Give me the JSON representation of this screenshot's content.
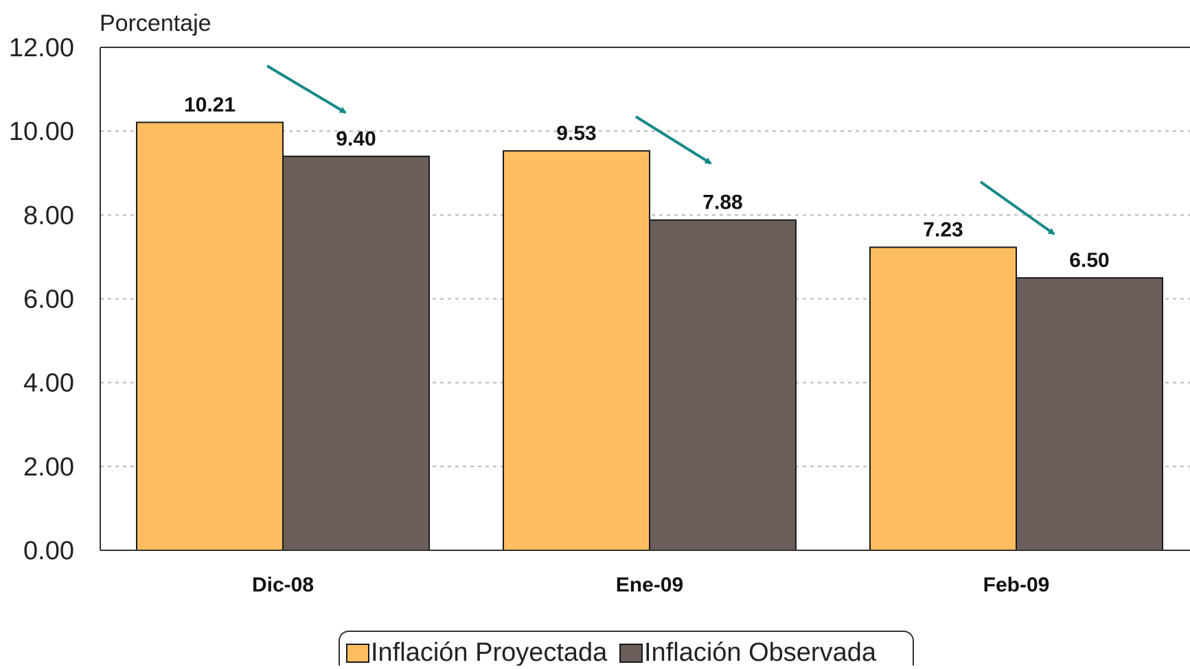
{
  "chart_data": {
    "type": "bar",
    "ylabel": "Porcentaje",
    "xlabel": "",
    "title": "",
    "ylim": [
      0,
      12
    ],
    "yticks": [
      "0.00",
      "2.00",
      "4.00",
      "6.00",
      "8.00",
      "10.00",
      "12.00"
    ],
    "categories": [
      "Dic-08",
      "Ene-09",
      "Feb-09"
    ],
    "series": [
      {
        "name": "Inflación Proyectada",
        "color": "#FDBD60",
        "values": [
          10.21,
          9.53,
          7.23
        ],
        "labels": [
          "10.21",
          "9.53",
          "7.23"
        ]
      },
      {
        "name": "Inflación Observada",
        "color": "#6B5E5A",
        "values": [
          9.4,
          7.88,
          6.5
        ],
        "labels": [
          "9.40",
          "7.88",
          "6.50"
        ]
      }
    ],
    "grid": true,
    "legend_position": "bottom",
    "annotation_arrow_color": "#17898A"
  }
}
